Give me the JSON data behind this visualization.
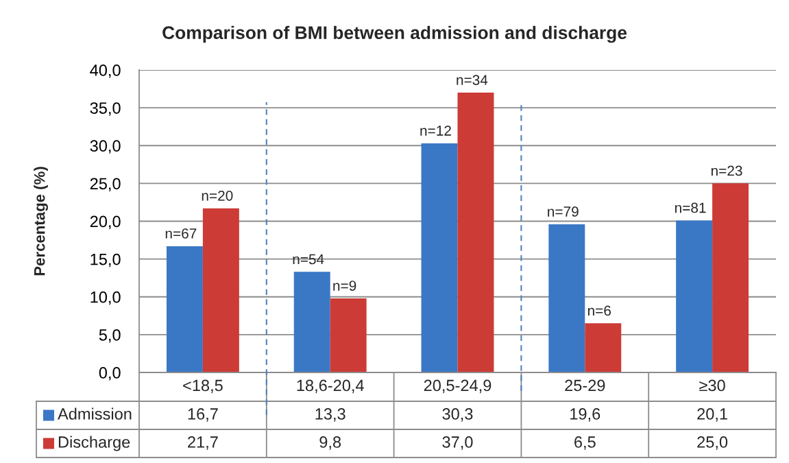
{
  "chart_data": {
    "type": "bar",
    "title": "Comparison of BMI between admission and discharge",
    "ylabel": "Percentage (%)",
    "categories": [
      "<18,5",
      "18,6-20,4",
      "20,5-24,9",
      "25-29",
      "≥30"
    ],
    "series": [
      {
        "name": "Admission",
        "color": "#3a78c5",
        "values": [
          16.7,
          13.3,
          30.3,
          19.6,
          20.1
        ],
        "value_labels": [
          "16,7",
          "13,3",
          "30,3",
          "19,6",
          "20,1"
        ]
      },
      {
        "name": "Discharge",
        "color": "#cc3b36",
        "values": [
          21.7,
          9.8,
          37.0,
          6.5,
          25.0
        ],
        "value_labels": [
          "21,7",
          "9,8",
          "37,0",
          "6,5",
          "25,0"
        ]
      }
    ],
    "ylim": [
      0,
      40
    ],
    "yticks": [
      {
        "value": 0,
        "label": "0,0"
      },
      {
        "value": 5,
        "label": "5,0"
      },
      {
        "value": 10,
        "label": "10,0"
      },
      {
        "value": 15,
        "label": "15,0"
      },
      {
        "value": 20,
        "label": "20,0"
      },
      {
        "value": 25,
        "label": "25,0"
      },
      {
        "value": 30,
        "label": "30,0"
      },
      {
        "value": 35,
        "label": "35,0"
      },
      {
        "value": 40,
        "label": "40,0"
      }
    ],
    "grid": "y",
    "legend": "bottom",
    "annotations": [
      {
        "text": "n=67",
        "x": "<18,5",
        "y": 16.7
      },
      {
        "text": "n=20",
        "x": "<18,5",
        "y": 21.7
      },
      {
        "text": "n=54",
        "x": "18,6-20,4",
        "y": 13.3
      },
      {
        "text": "n=9",
        "x": "18,6-20,4",
        "y": 9.8
      },
      {
        "text": "n=12",
        "x": "20,5-24,9",
        "y": 30.3
      },
      {
        "text": "n=34",
        "x": "20,5-24,9",
        "y": 37.0
      },
      {
        "text": "n=79",
        "x": "25-29",
        "y": 19.6
      },
      {
        "text": "n=6",
        "x": "25-29",
        "y": 6.5
      },
      {
        "text": "n=81",
        "x": "≥30",
        "y": 20.1
      },
      {
        "text": "n=23",
        "x": "≥30",
        "y": 25.0
      }
    ]
  }
}
